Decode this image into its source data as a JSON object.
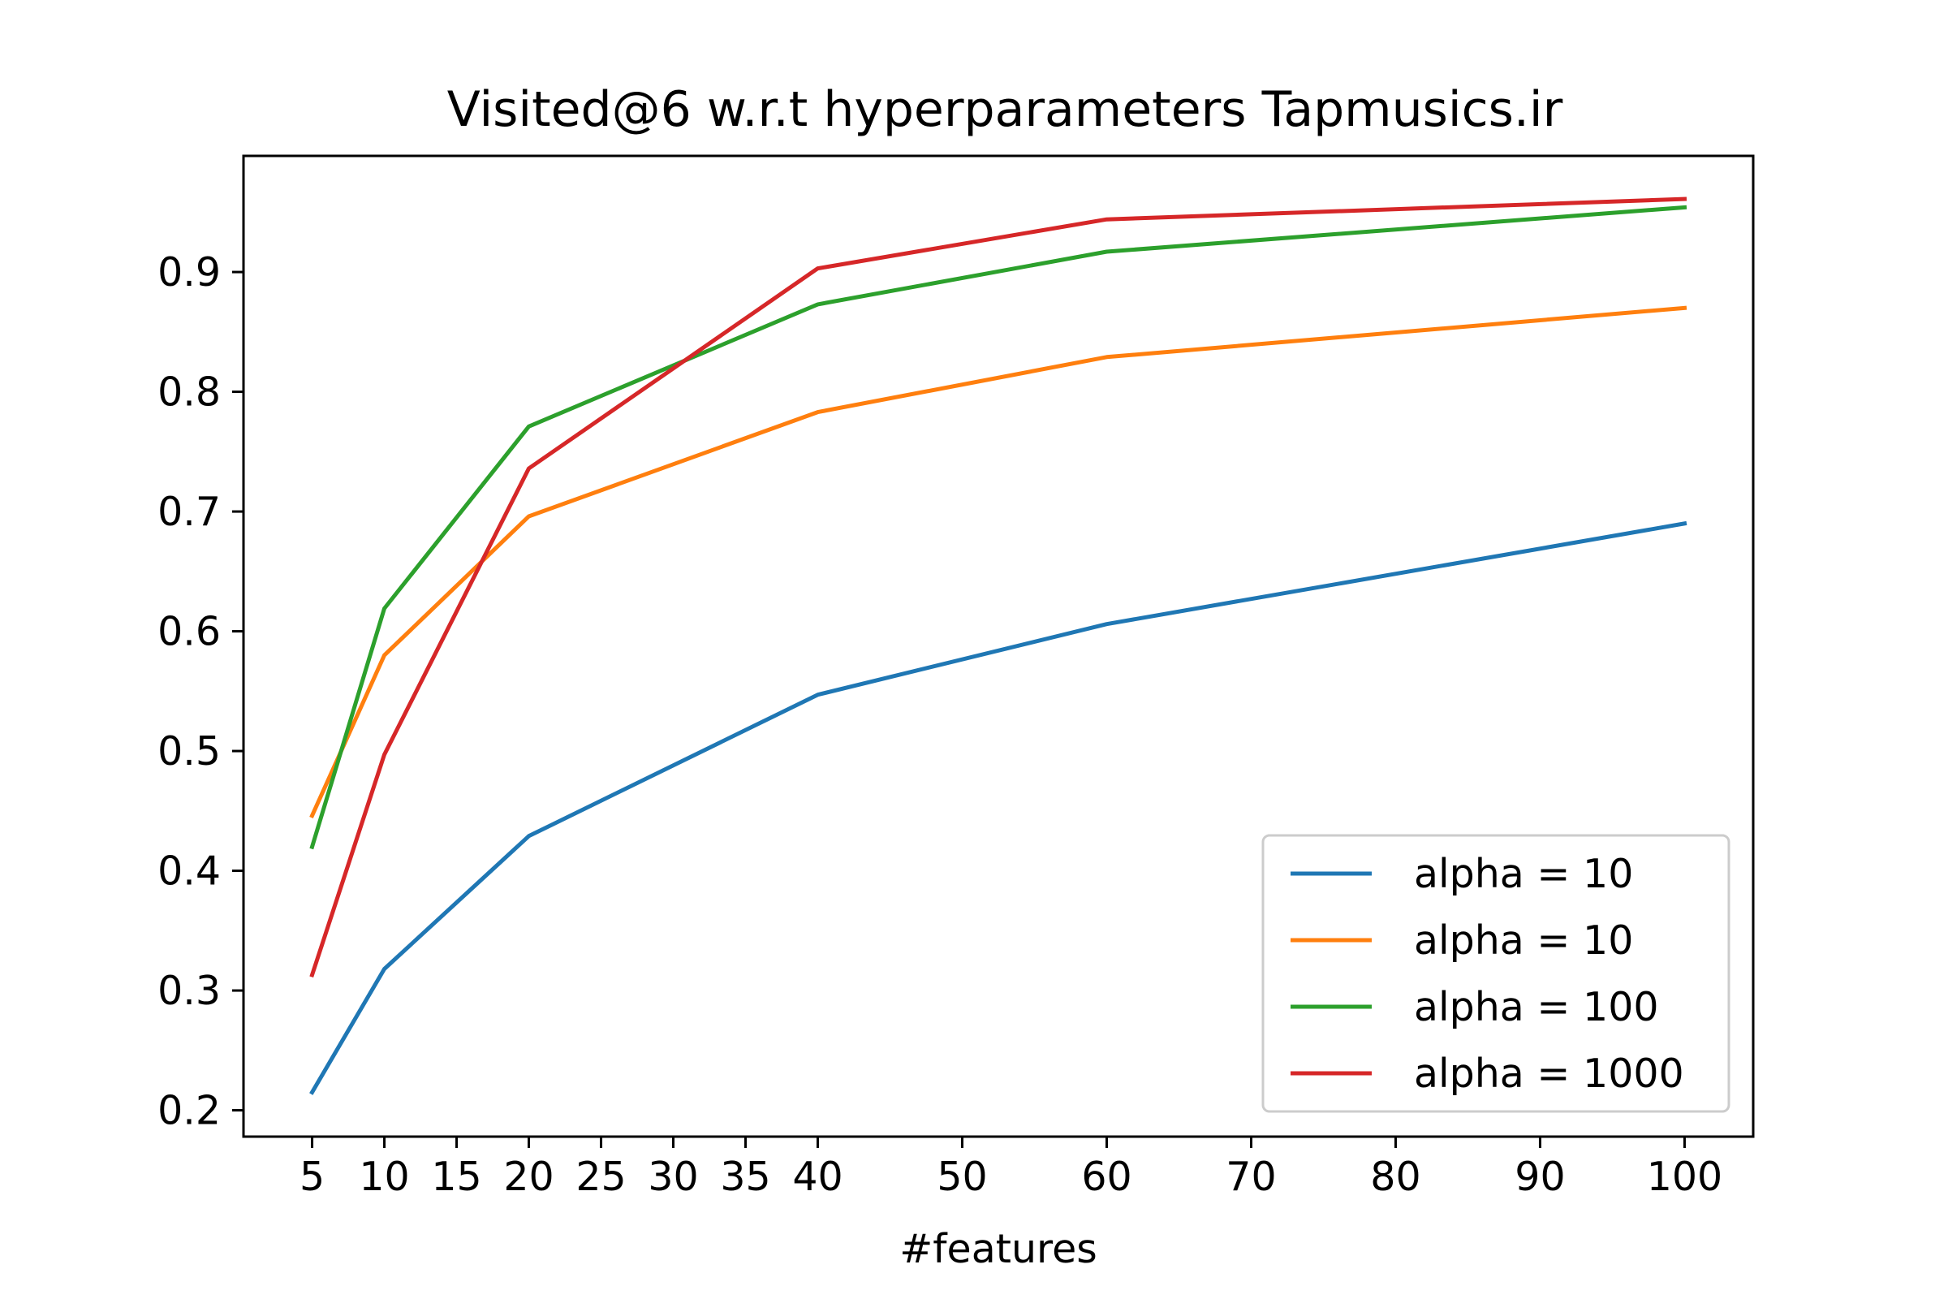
{
  "chart_data": {
    "type": "line",
    "title": "Visited@6 w.r.t hyperparameters Tapmusics.ir",
    "xlabel": "#features",
    "ylabel": "",
    "x": [
      5,
      10,
      20,
      40,
      60,
      100
    ],
    "xticks": [
      5,
      10,
      15,
      20,
      25,
      30,
      35,
      40,
      50,
      60,
      70,
      80,
      90,
      100
    ],
    "yticks": [
      0.2,
      0.3,
      0.4,
      0.5,
      0.6,
      0.7,
      0.8,
      0.9
    ],
    "xlim": [
      0.25,
      104.75
    ],
    "ylim": [
      0.178,
      0.997
    ],
    "grid": false,
    "legend_position": "lower-right",
    "series": [
      {
        "name": "alpha = 10",
        "color": "#1f77b4",
        "values": [
          0.215,
          0.318,
          0.429,
          0.547,
          0.606,
          0.69
        ]
      },
      {
        "name": "alpha = 10",
        "color": "#ff7f0e",
        "values": [
          0.446,
          0.58,
          0.696,
          0.783,
          0.829,
          0.87
        ]
      },
      {
        "name": "alpha = 100",
        "color": "#2ca02c",
        "values": [
          0.42,
          0.619,
          0.771,
          0.873,
          0.917,
          0.954
        ]
      },
      {
        "name": "alpha = 1000",
        "color": "#d62728",
        "values": [
          0.313,
          0.497,
          0.736,
          0.903,
          0.944,
          0.961
        ]
      }
    ]
  }
}
